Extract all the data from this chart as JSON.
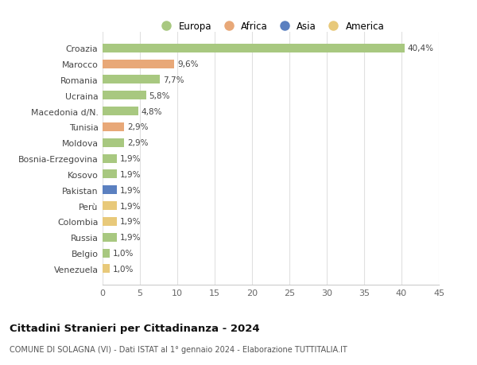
{
  "categories": [
    "Venezuela",
    "Belgio",
    "Russia",
    "Colombia",
    "Perù",
    "Pakistan",
    "Kosovo",
    "Bosnia-Erzegovina",
    "Moldova",
    "Tunisia",
    "Macedonia d/N.",
    "Ucraina",
    "Romania",
    "Marocco",
    "Croazia"
  ],
  "values": [
    1.0,
    1.0,
    1.9,
    1.9,
    1.9,
    1.9,
    1.9,
    1.9,
    2.9,
    2.9,
    4.8,
    5.8,
    7.7,
    9.6,
    40.4
  ],
  "labels": [
    "1,0%",
    "1,0%",
    "1,9%",
    "1,9%",
    "1,9%",
    "1,9%",
    "1,9%",
    "1,9%",
    "2,9%",
    "2,9%",
    "4,8%",
    "5,8%",
    "7,7%",
    "9,6%",
    "40,4%"
  ],
  "colors": [
    "#e8c97a",
    "#a8c880",
    "#a8c880",
    "#e8c97a",
    "#e8c97a",
    "#5b80c0",
    "#a8c880",
    "#a8c880",
    "#a8c880",
    "#e8a878",
    "#a8c880",
    "#a8c880",
    "#a8c880",
    "#e8a878",
    "#a8c880"
  ],
  "legend_labels": [
    "Europa",
    "Africa",
    "Asia",
    "America"
  ],
  "legend_colors": [
    "#a8c880",
    "#e8a878",
    "#5b80c0",
    "#e8c97a"
  ],
  "title": "Cittadini Stranieri per Cittadinanza - 2024",
  "subtitle": "COMUNE DI SOLAGNA (VI) - Dati ISTAT al 1° gennaio 2024 - Elaborazione TUTTITALIA.IT",
  "xlim": [
    0,
    45
  ],
  "xticks": [
    0,
    5,
    10,
    15,
    20,
    25,
    30,
    35,
    40,
    45
  ],
  "background_color": "#ffffff",
  "grid_color": "#e0e0e0",
  "bar_height": 0.55
}
